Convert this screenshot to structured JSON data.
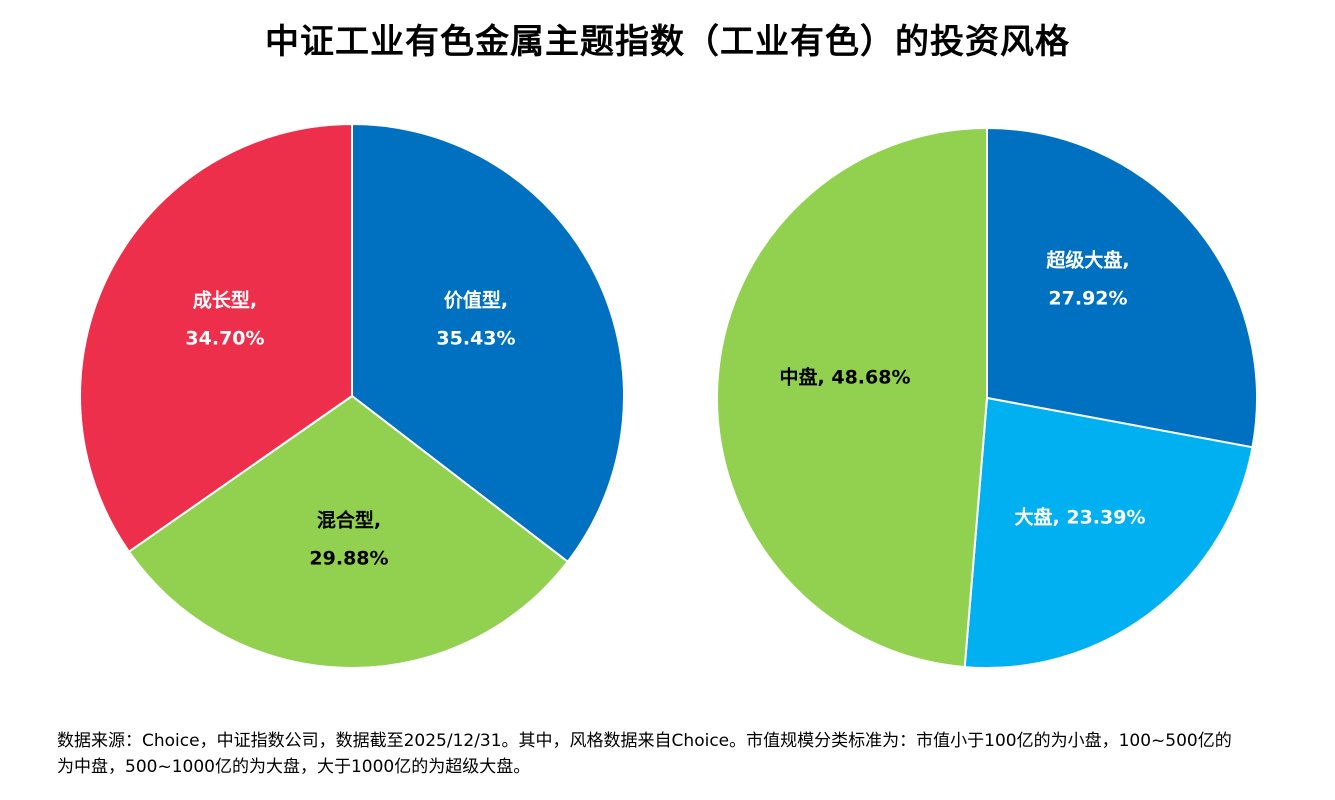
{
  "title": "中证工业有色金属主题指数（工业有色）的投资风格",
  "colors": {
    "growth_red": "#EE2F4C",
    "value_blue": "#0070C0",
    "mixed_green": "#92D050",
    "mid_green": "#92D050",
    "large_light_blue": "#00B0F0",
    "super_large_blue": "#0070C0"
  },
  "chart_data": [
    {
      "type": "pie",
      "slices": [
        {
          "label": "价值型",
          "value": 35.43,
          "text_line1": "价值型,",
          "text_line2": "35.43%",
          "color": "#0070C0",
          "text_color": "#ffffff"
        },
        {
          "label": "混合型",
          "value": 29.88,
          "text_line1": "混合型,",
          "text_line2": "29.88%",
          "color": "#92D050",
          "text_color": "#000000"
        },
        {
          "label": "成长型",
          "value": 34.7,
          "text_line1": "成长型,",
          "text_line2": "34.70%",
          "color": "#EE2F4C",
          "text_color": "#ffffff"
        }
      ]
    },
    {
      "type": "pie",
      "slices": [
        {
          "label": "超级大盘",
          "value": 27.92,
          "text_line1": "超级大盘,",
          "text_line2": "27.92%",
          "color": "#0070C0",
          "text_color": "#ffffff"
        },
        {
          "label": "大盘",
          "value": 23.39,
          "text_line1": "大盘, 23.39%",
          "text_line2": "",
          "color": "#00B0F0",
          "text_color": "#ffffff"
        },
        {
          "label": "中盘",
          "value": 48.68,
          "text_line1": "中盘, 48.68%",
          "text_line2": "",
          "color": "#92D050",
          "text_color": "#000000"
        }
      ]
    }
  ],
  "footnote": {
    "line1": "数据来源：Choice，中证指数公司，数据截至2025/12/31。其中，风格数据来自Choice。市值规模分类标准为：市值小于100亿的为小盘，100~500亿的",
    "line2": "为中盘，500~1000亿的为大盘，大于1000亿的为超级大盘。"
  }
}
